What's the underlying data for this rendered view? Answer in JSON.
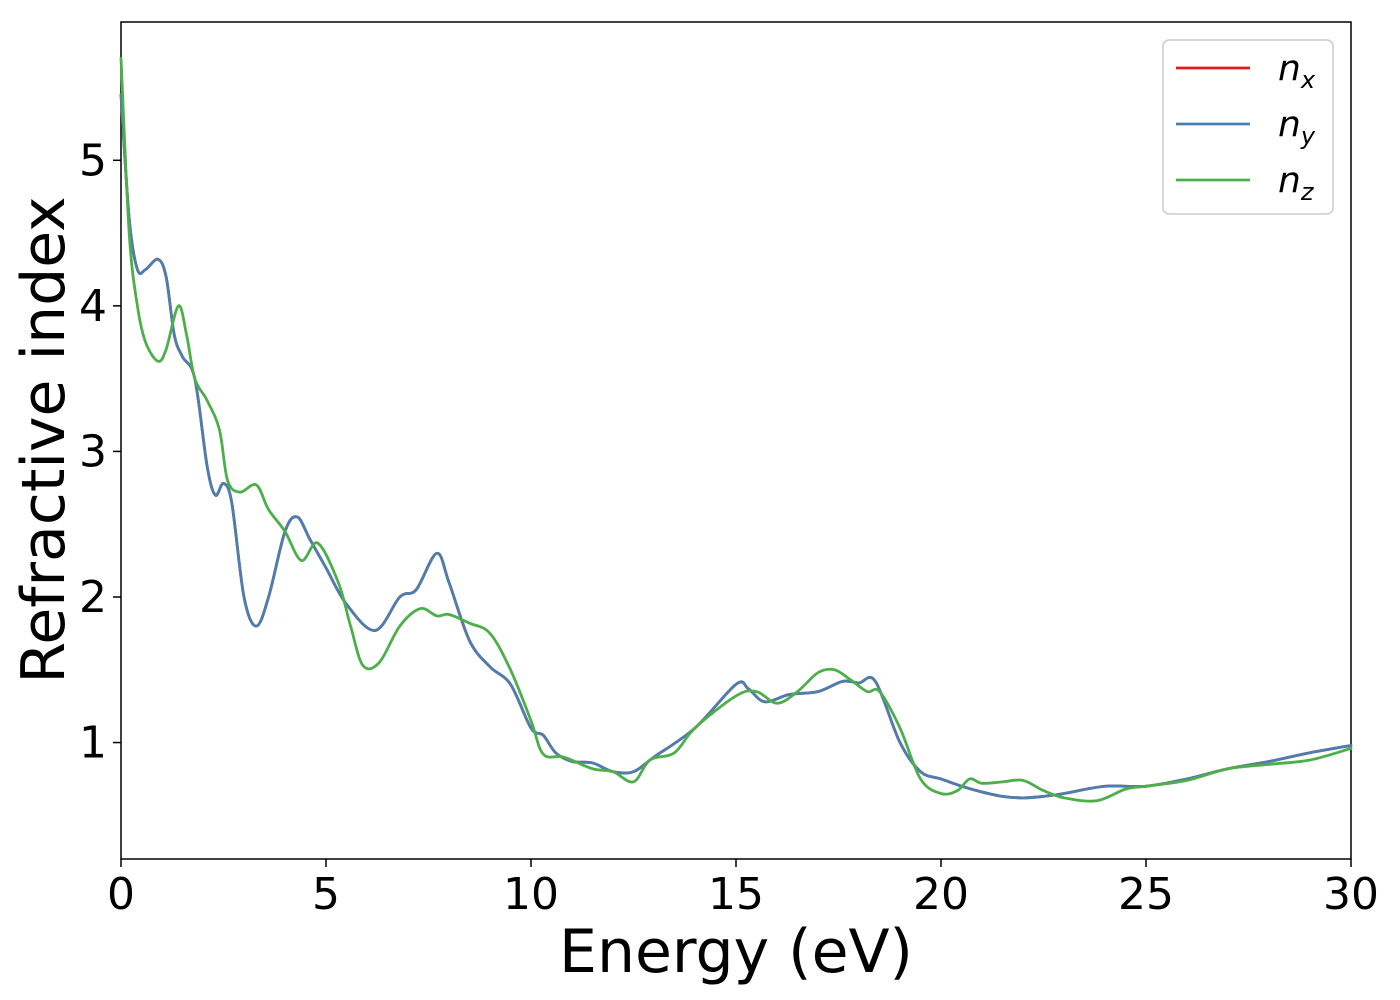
{
  "chart_data": {
    "type": "line",
    "xlabel": "Energy (eV)",
    "ylabel": "Refractive index",
    "xlim": [
      0,
      30
    ],
    "ylim": [
      0.2,
      5.95
    ],
    "xticks": [
      0,
      5,
      10,
      15,
      20,
      25,
      30
    ],
    "yticks": [
      1,
      2,
      3,
      4,
      5
    ],
    "grid": false,
    "legend_position": "top-right",
    "series": [
      {
        "name": "n",
        "subscript": "x",
        "color": "#e41a1c",
        "x": [
          0,
          0.2,
          0.4,
          0.6,
          0.9,
          1.1,
          1.3,
          1.5,
          1.8,
          2.1,
          2.3,
          2.5,
          2.7,
          3.0,
          3.3,
          3.6,
          4.0,
          4.3,
          4.6,
          5.0,
          5.5,
          6.2,
          6.8,
          7.2,
          7.7,
          8.0,
          8.5,
          9.0,
          9.5,
          10.0,
          10.3,
          10.6,
          11.0,
          11.5,
          12.0,
          12.5,
          13.0,
          14.0,
          15.0,
          15.3,
          15.7,
          16.3,
          17.0,
          17.6,
          18.0,
          18.4,
          19.0,
          19.5,
          20.0,
          20.5,
          21.0,
          21.5,
          22.0,
          22.5,
          23.0,
          24.0,
          25.0,
          26.0,
          27.0,
          28.0,
          29.0,
          30.0
        ],
        "y": [
          5.45,
          4.6,
          4.25,
          4.25,
          4.32,
          4.2,
          3.8,
          3.65,
          3.5,
          2.9,
          2.7,
          2.78,
          2.65,
          2.0,
          1.8,
          2.0,
          2.45,
          2.55,
          2.4,
          2.2,
          1.95,
          1.77,
          2.0,
          2.05,
          2.3,
          2.1,
          1.7,
          1.52,
          1.4,
          1.1,
          1.05,
          0.93,
          0.87,
          0.86,
          0.8,
          0.8,
          0.9,
          1.1,
          1.4,
          1.37,
          1.28,
          1.33,
          1.35,
          1.42,
          1.41,
          1.42,
          1.0,
          0.8,
          0.75,
          0.7,
          0.66,
          0.63,
          0.62,
          0.63,
          0.65,
          0.7,
          0.7,
          0.75,
          0.82,
          0.87,
          0.93,
          0.98
        ]
      },
      {
        "name": "n",
        "subscript": "y",
        "color": "#4a7fb0",
        "x": [
          0,
          0.2,
          0.4,
          0.6,
          0.9,
          1.1,
          1.3,
          1.5,
          1.8,
          2.1,
          2.3,
          2.5,
          2.7,
          3.0,
          3.3,
          3.6,
          4.0,
          4.3,
          4.6,
          5.0,
          5.5,
          6.2,
          6.8,
          7.2,
          7.7,
          8.0,
          8.5,
          9.0,
          9.5,
          10.0,
          10.3,
          10.6,
          11.0,
          11.5,
          12.0,
          12.5,
          13.0,
          14.0,
          15.0,
          15.3,
          15.7,
          16.3,
          17.0,
          17.6,
          18.0,
          18.4,
          19.0,
          19.5,
          20.0,
          20.5,
          21.0,
          21.5,
          22.0,
          22.5,
          23.0,
          24.0,
          25.0,
          26.0,
          27.0,
          28.0,
          29.0,
          30.0
        ],
        "y": [
          5.45,
          4.6,
          4.25,
          4.25,
          4.32,
          4.2,
          3.8,
          3.65,
          3.5,
          2.9,
          2.7,
          2.78,
          2.65,
          2.0,
          1.8,
          2.0,
          2.45,
          2.55,
          2.4,
          2.2,
          1.95,
          1.77,
          2.0,
          2.05,
          2.3,
          2.1,
          1.7,
          1.52,
          1.4,
          1.1,
          1.05,
          0.93,
          0.87,
          0.86,
          0.8,
          0.8,
          0.9,
          1.1,
          1.4,
          1.37,
          1.28,
          1.33,
          1.35,
          1.42,
          1.41,
          1.42,
          1.0,
          0.8,
          0.75,
          0.7,
          0.66,
          0.63,
          0.62,
          0.63,
          0.65,
          0.7,
          0.7,
          0.75,
          0.82,
          0.87,
          0.93,
          0.98
        ]
      },
      {
        "name": "n",
        "subscript": "z",
        "color": "#4daf4a",
        "x": [
          0,
          0.2,
          0.4,
          0.6,
          0.9,
          1.1,
          1.4,
          1.6,
          1.8,
          2.1,
          2.4,
          2.6,
          2.9,
          3.3,
          3.6,
          4.0,
          4.4,
          4.8,
          5.3,
          5.6,
          5.9,
          6.3,
          6.8,
          7.3,
          7.7,
          8.0,
          8.5,
          9.0,
          9.5,
          10.0,
          10.3,
          10.8,
          11.5,
          12.0,
          12.5,
          12.9,
          13.5,
          14.0,
          15.0,
          15.5,
          16.0,
          16.5,
          17.0,
          17.4,
          17.8,
          18.2,
          18.5,
          19.0,
          19.5,
          20.0,
          20.4,
          20.7,
          21.0,
          21.5,
          22.0,
          22.5,
          23.0,
          23.8,
          24.5,
          25.0,
          26.0,
          27.0,
          28.0,
          29.0,
          30.0
        ],
        "y": [
          5.7,
          4.5,
          4.0,
          3.75,
          3.62,
          3.7,
          4.0,
          3.8,
          3.5,
          3.35,
          3.15,
          2.8,
          2.72,
          2.77,
          2.6,
          2.45,
          2.25,
          2.37,
          2.1,
          1.8,
          1.53,
          1.55,
          1.8,
          1.92,
          1.87,
          1.88,
          1.82,
          1.75,
          1.5,
          1.15,
          0.92,
          0.9,
          0.82,
          0.8,
          0.73,
          0.88,
          0.93,
          1.1,
          1.32,
          1.35,
          1.27,
          1.35,
          1.48,
          1.5,
          1.43,
          1.35,
          1.35,
          1.1,
          0.75,
          0.65,
          0.67,
          0.75,
          0.72,
          0.73,
          0.74,
          0.67,
          0.62,
          0.6,
          0.68,
          0.7,
          0.74,
          0.82,
          0.85,
          0.88,
          0.96
        ]
      }
    ]
  }
}
